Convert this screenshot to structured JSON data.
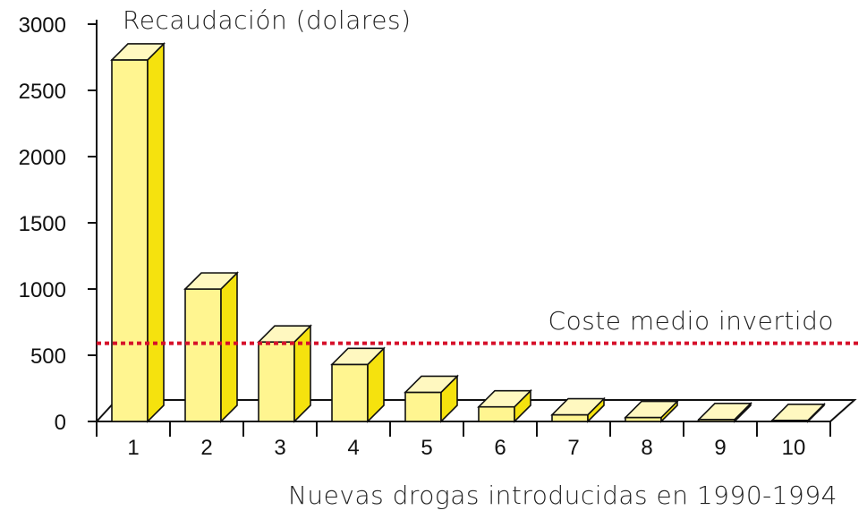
{
  "chart_data": {
    "type": "bar",
    "title": "",
    "ylabel": "Recaudación (dolares)",
    "xlabel": "Nuevas drogas introducidas en 1990-1994",
    "categories": [
      "1",
      "2",
      "3",
      "4",
      "5",
      "6",
      "7",
      "8",
      "9",
      "10"
    ],
    "values": [
      2730,
      1000,
      600,
      430,
      220,
      110,
      50,
      30,
      15,
      8
    ],
    "ylim": [
      0,
      3000
    ],
    "yticks": [
      "3000",
      "2500",
      "2000",
      "1500",
      "1000",
      "500",
      "0"
    ],
    "yticks_values": [
      3000,
      2500,
      2000,
      1500,
      1000,
      500,
      0
    ],
    "reference_line": {
      "label": "Coste medio invertido",
      "value": 590
    },
    "grid": false,
    "style": "3d-bars"
  },
  "colors": {
    "bar_front": "#fff590",
    "bar_top": "#fff8c0",
    "bar_side": "#f5e20e",
    "reference_line": "#d6102a",
    "axis": "#111111"
  }
}
